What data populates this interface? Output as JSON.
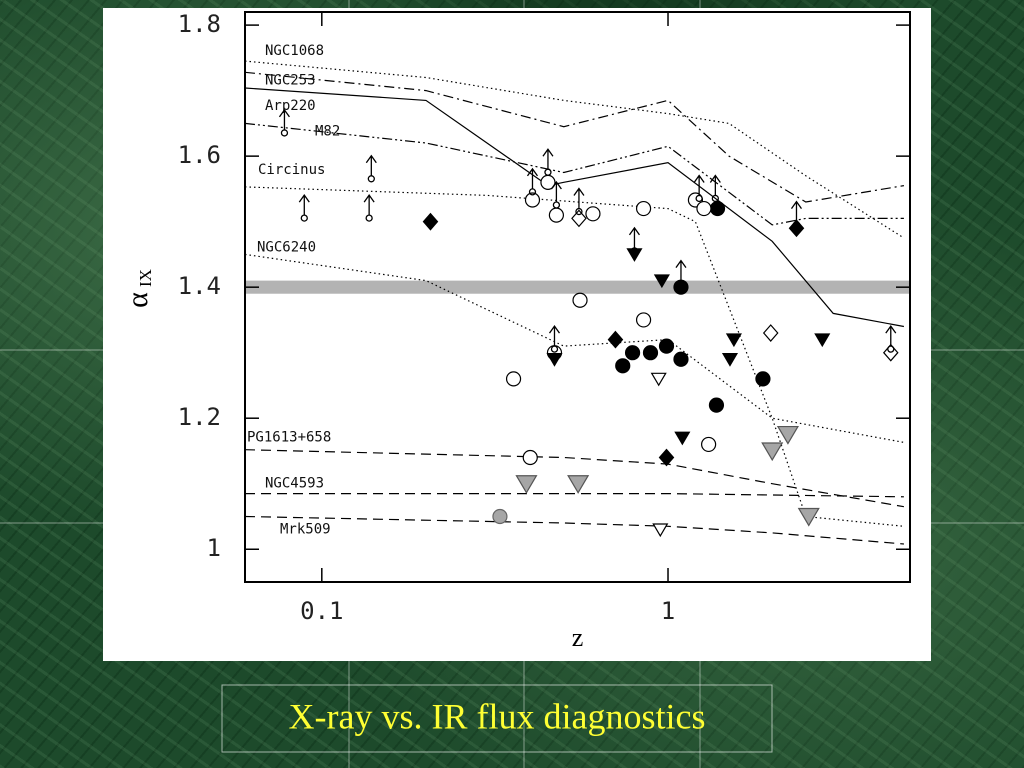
{
  "caption": "X-ray vs. IR flux diagnostics",
  "chart_data": {
    "type": "scatter",
    "x_label": "z",
    "y_label": "α",
    "y_label_sub": "IX",
    "xscale": "log",
    "xlim": [
      0.06,
      5
    ],
    "ylim": [
      0.95,
      1.82
    ],
    "xticks": [
      0.1,
      1
    ],
    "yticks": [
      1,
      1.2,
      1.4,
      1.6,
      1.8
    ],
    "band": {
      "ymin": 1.39,
      "ymax": 1.41,
      "color": "#b3b3b3"
    },
    "lines": [
      {
        "name": "NGC1068",
        "style": "dotted",
        "color": "#000000",
        "x": [
          0.06,
          0.2,
          0.5,
          1,
          1.5,
          2.5,
          4.8
        ],
        "values": [
          1.745,
          1.72,
          1.685,
          1.665,
          1.65,
          1.57,
          1.475
        ]
      },
      {
        "name": "NGC253",
        "style": "dash-dot",
        "color": "#000000",
        "x": [
          0.06,
          0.2,
          0.5,
          1,
          1.5,
          2.5,
          4.8
        ],
        "values": [
          1.728,
          1.7,
          1.645,
          1.685,
          1.6,
          1.53,
          1.555
        ]
      },
      {
        "name": "Arp220",
        "style": "solid",
        "color": "#000000",
        "x": [
          0.06,
          0.2,
          0.45,
          0.5,
          1,
          2,
          3,
          4.8
        ],
        "values": [
          1.704,
          1.685,
          1.555,
          1.56,
          1.59,
          1.47,
          1.36,
          1.34
        ]
      },
      {
        "name": "M82",
        "style": "dash-dot-dot",
        "color": "#000000",
        "x": [
          0.06,
          0.2,
          0.5,
          1,
          2,
          2.5,
          4.8
        ],
        "values": [
          1.65,
          1.62,
          1.575,
          1.615,
          1.495,
          1.505,
          1.505
        ]
      },
      {
        "name": "Circinus",
        "style": "dotted",
        "color": "#000000",
        "x": [
          0.06,
          0.3,
          1,
          1.2,
          2,
          2.5,
          4.8
        ],
        "values": [
          1.553,
          1.54,
          1.52,
          1.5,
          1.2,
          1.05,
          1.035
        ]
      },
      {
        "name": "NGC6240",
        "style": "dotted",
        "color": "#000000",
        "x": [
          0.06,
          0.2,
          0.5,
          1,
          2,
          4.8
        ],
        "values": [
          1.45,
          1.41,
          1.31,
          1.32,
          1.2,
          1.163
        ]
      },
      {
        "name": "PG1613+658",
        "style": "dashed",
        "color": "#000000",
        "x": [
          0.06,
          0.5,
          1,
          2,
          4.8
        ],
        "values": [
          1.152,
          1.14,
          1.13,
          1.1,
          1.065
        ]
      },
      {
        "name": "NGC4593",
        "style": "dashed",
        "color": "#000000",
        "x": [
          0.06,
          1,
          4.8
        ],
        "values": [
          1.085,
          1.085,
          1.08
        ]
      },
      {
        "name": "Mrk509",
        "style": "dashed",
        "color": "#000000",
        "x": [
          0.06,
          0.5,
          1,
          2,
          4.8
        ],
        "values": [
          1.05,
          1.04,
          1.035,
          1.025,
          1.008
        ]
      }
    ],
    "series": [
      {
        "marker": "circle-filled",
        "color": "#000000",
        "x": [
          0.74,
          0.79,
          0.89,
          0.99,
          1.09,
          1.09,
          1.39,
          1.38,
          1.88
        ],
        "values": [
          1.28,
          1.3,
          1.3,
          1.31,
          1.29,
          1.4,
          1.52,
          1.22,
          1.26
        ]
      },
      {
        "marker": "circle-open",
        "color": "#000000",
        "x": [
          0.358,
          0.406,
          0.45,
          0.476,
          0.557,
          0.607,
          0.85,
          0.85,
          0.47,
          0.4,
          1.2,
          1.27,
          1.31
        ],
        "values": [
          1.26,
          1.533,
          1.56,
          1.51,
          1.38,
          1.512,
          1.52,
          1.35,
          1.3,
          1.14,
          1.533,
          1.52,
          1.16
        ]
      },
      {
        "marker": "diamond-filled",
        "color": "#000000",
        "x": [
          0.206,
          0.705,
          0.99,
          2.35
        ],
        "values": [
          1.5,
          1.32,
          1.14,
          1.49
        ]
      },
      {
        "marker": "diamond-open",
        "color": "#000000",
        "x": [
          0.553,
          1.98,
          4.4
        ],
        "values": [
          1.505,
          1.33,
          1.3
        ]
      },
      {
        "marker": "triangle-filled",
        "color": "#000000",
        "x": [
          0.8,
          0.96,
          0.47,
          1.55,
          1.51,
          1.1,
          2.79
        ],
        "values": [
          1.45,
          1.41,
          1.29,
          1.32,
          1.29,
          1.17,
          1.32
        ]
      },
      {
        "marker": "triangle-open",
        "color": "#000000",
        "x": [
          0.94,
          0.95
        ],
        "values": [
          1.26,
          1.03
        ]
      },
      {
        "marker": "triangle-gray",
        "color": "#a6a6a6",
        "x": [
          0.39,
          0.55,
          2.22,
          2.0,
          2.55
        ],
        "values": [
          1.1,
          1.1,
          1.175,
          1.15,
          1.05
        ]
      },
      {
        "marker": "circle-gray",
        "color": "#a6a6a6",
        "x": [
          0.327
        ],
        "values": [
          1.05
        ]
      },
      {
        "marker": "arrow-up",
        "color": "#000000",
        "x": [
          0.078,
          0.139,
          0.089,
          0.137,
          0.406,
          0.45,
          0.476,
          0.553,
          0.8,
          1.09,
          0.47,
          1.23,
          1.37,
          2.35,
          4.4
        ],
        "values": [
          1.64,
          1.57,
          1.51,
          1.51,
          1.55,
          1.58,
          1.53,
          1.52,
          1.46,
          1.41,
          1.31,
          1.54,
          1.54,
          1.5,
          1.31
        ]
      }
    ]
  }
}
